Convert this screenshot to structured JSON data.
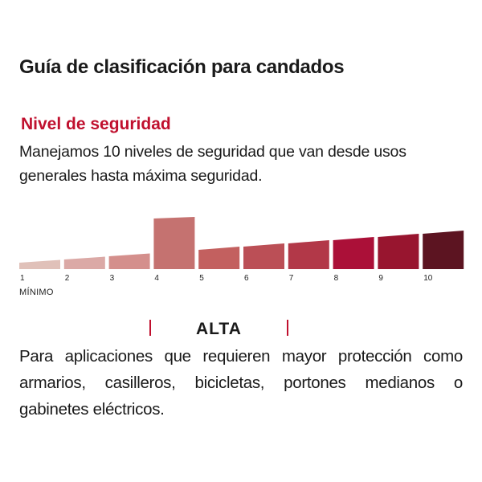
{
  "title": "Guía de clasificación para candados",
  "subtitle": "Nivel de seguridad",
  "intro_lines": [
    "Manejamos 10 niveles de seguridad que van desde usos",
    "generales hasta máxima seguridad."
  ],
  "scale": {
    "levels": [
      "1",
      "2",
      "3",
      "4",
      "5",
      "6",
      "7",
      "8",
      "9",
      "10"
    ],
    "selected_level": 4,
    "min_label": "MÍNIMO",
    "colors": [
      "#e0c1b9",
      "#dba9a6",
      "#d48f8c",
      "#c57270",
      "#c3605f",
      "#bb4f56",
      "#b23848",
      "#ab1038",
      "#98152f",
      "#5c1421"
    ]
  },
  "level_name": "ALTA",
  "accent_color": "#c0102e",
  "description_lines": [
    "Para aplicaciones que requieren mayor protección como",
    "armarios, casilleros, bicicletas, portones medianos o",
    "gabinetes eléctricos."
  ]
}
